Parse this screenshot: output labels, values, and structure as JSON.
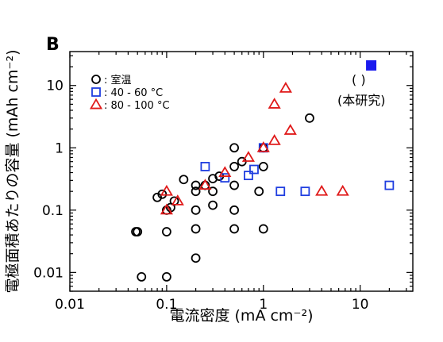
{
  "panel_label": "B",
  "annotation": {
    "line1": "(     )",
    "line2": "(本研究)"
  },
  "chart_data": {
    "type": "scatter",
    "x_scale": "log",
    "y_scale": "log",
    "xlabel": "電流密度 (mA cm⁻²)",
    "ylabel": "電極面積あたりの容量 (mAh cm⁻²)",
    "xlim": [
      0.01,
      35
    ],
    "ylim": [
      0.005,
      35
    ],
    "x_ticks": [
      {
        "value": 0.01,
        "label": "0.01"
      },
      {
        "value": 0.1,
        "label": "0.1"
      },
      {
        "value": 1,
        "label": "1"
      },
      {
        "value": 10,
        "label": "10"
      }
    ],
    "y_ticks": [
      {
        "value": 0.01,
        "label": "0.01"
      },
      {
        "value": 0.1,
        "label": "0.1"
      },
      {
        "value": 1,
        "label": "1"
      },
      {
        "value": 10,
        "label": "10"
      }
    ],
    "legend_position": "top-left",
    "series": [
      {
        "name": ": 室温",
        "marker": "circle",
        "color": "#000000",
        "points": [
          [
            0.05,
            0.045
          ],
          [
            0.048,
            0.045
          ],
          [
            0.055,
            0.0085
          ],
          [
            0.1,
            0.0085
          ],
          [
            0.1,
            0.045
          ],
          [
            0.1,
            0.1
          ],
          [
            0.08,
            0.16
          ],
          [
            0.09,
            0.18
          ],
          [
            0.11,
            0.11
          ],
          [
            0.12,
            0.14
          ],
          [
            0.15,
            0.31
          ],
          [
            0.2,
            0.25
          ],
          [
            0.2,
            0.2
          ],
          [
            0.2,
            0.1
          ],
          [
            0.2,
            0.05
          ],
          [
            0.2,
            0.017
          ],
          [
            0.25,
            0.25
          ],
          [
            0.3,
            0.12
          ],
          [
            0.3,
            0.2
          ],
          [
            0.3,
            0.32
          ],
          [
            0.35,
            0.35
          ],
          [
            0.5,
            1.0
          ],
          [
            0.5,
            0.5
          ],
          [
            0.5,
            0.25
          ],
          [
            0.5,
            0.1
          ],
          [
            0.5,
            0.05
          ],
          [
            0.6,
            0.6
          ],
          [
            0.9,
            0.2
          ],
          [
            1.0,
            1.0
          ],
          [
            1.0,
            0.5
          ],
          [
            1.0,
            0.05
          ],
          [
            3.0,
            3.0
          ]
        ]
      },
      {
        "name": ": 40 - 60 °C",
        "marker": "square",
        "color": "#1f3ee0",
        "points": [
          [
            0.25,
            0.5
          ],
          [
            0.4,
            0.33
          ],
          [
            0.7,
            0.36
          ],
          [
            0.8,
            0.45
          ],
          [
            1.0,
            1.0
          ],
          [
            1.5,
            0.2
          ],
          [
            2.7,
            0.2
          ],
          [
            20.0,
            0.25
          ]
        ]
      },
      {
        "name": ": 80 - 100 °C",
        "marker": "triangle",
        "color": "#e01a1a",
        "points": [
          [
            0.1,
            0.1
          ],
          [
            0.1,
            0.2
          ],
          [
            0.13,
            0.14
          ],
          [
            0.25,
            0.25
          ],
          [
            0.4,
            0.4
          ],
          [
            0.7,
            0.7
          ],
          [
            1.0,
            1.0
          ],
          [
            1.3,
            1.3
          ],
          [
            1.3,
            5.0
          ],
          [
            1.7,
            9.0
          ],
          [
            1.9,
            1.9
          ],
          [
            4.0,
            0.2
          ],
          [
            6.6,
            0.2
          ]
        ]
      },
      {
        "marker": "filled-square",
        "color": "#1a1aee",
        "points": [
          [
            13.0,
            21.0
          ]
        ]
      }
    ]
  }
}
